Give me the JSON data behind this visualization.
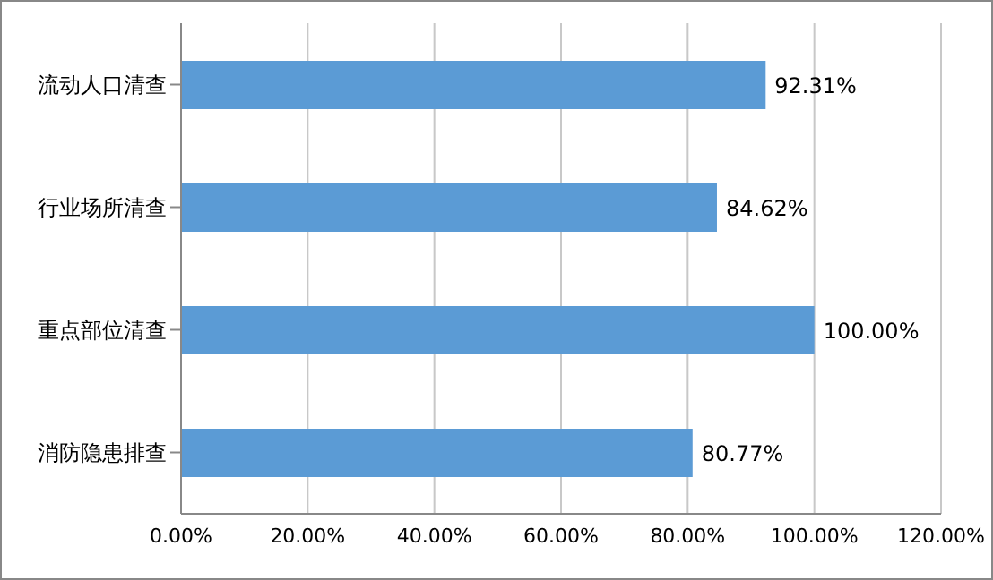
{
  "chart_data": {
    "type": "bar",
    "orientation": "horizontal",
    "categories": [
      "流动人口清查",
      "行业场所清查",
      "重点部位清查",
      "消防隐患排查"
    ],
    "values": [
      92.31,
      84.62,
      100,
      80.77
    ],
    "value_labels": [
      "92.31%",
      "84.62%",
      "100.00%",
      "80.77%"
    ],
    "color": "#5b9bd5",
    "xlim": [
      0,
      120
    ],
    "xticks": [
      {
        "value": 0,
        "label": "0.00%"
      },
      {
        "value": 20,
        "label": "20.00%"
      },
      {
        "value": 40,
        "label": "40.00%"
      },
      {
        "value": 60,
        "label": "60.00%"
      },
      {
        "value": 80,
        "label": "80.00%"
      },
      {
        "value": 100,
        "label": "100.00%"
      },
      {
        "value": 120,
        "label": "120.00%"
      }
    ],
    "grid": "x",
    "legend": false
  }
}
